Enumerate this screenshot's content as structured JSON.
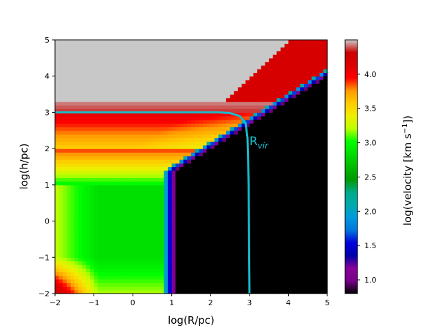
{
  "chart_data": {
    "type": "heatmap",
    "xlabel": "log(R/pc)",
    "ylabel": "log(h/pc)",
    "xlim": [
      -2,
      5
    ],
    "ylim": [
      -2,
      5
    ],
    "x_ticks": [
      "−2",
      "−1",
      "0",
      "1",
      "2",
      "3",
      "4",
      "5"
    ],
    "y_ticks": [
      "−2",
      "−1",
      "0",
      "1",
      "2",
      "3",
      "4",
      "5"
    ],
    "colorbar": {
      "label": "log(velocity [km s",
      "label_exp": "−1",
      "label_close": "])",
      "range": [
        0.8,
        4.5
      ],
      "colormap": "nipy_spectral",
      "ticks": [
        "1.0",
        "1.5",
        "2.0",
        "2.5",
        "3.0",
        "3.5",
        "4.0"
      ],
      "tick_values": [
        1.0,
        1.5,
        2.0,
        2.5,
        3.0,
        3.5,
        4.0
      ]
    },
    "masked_color": "#c8c8c8",
    "outside_color": "#000000",
    "annotation": {
      "text": "R",
      "subscript": "vir",
      "color": "#17becf",
      "position_data": [
        3.0,
        2.1
      ]
    },
    "rvir_curve": {
      "color": "#17becf",
      "points": [
        [
          -2,
          3.0
        ],
        [
          2.2,
          3.0
        ],
        [
          2.5,
          2.98
        ],
        [
          2.75,
          2.9
        ],
        [
          2.9,
          2.7
        ],
        [
          2.95,
          2.3
        ],
        [
          2.98,
          1.0
        ],
        [
          3.0,
          -2.0
        ]
      ]
    }
  }
}
